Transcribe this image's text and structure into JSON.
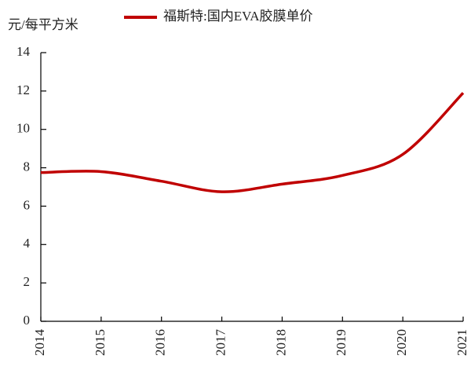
{
  "chart_data": {
    "type": "line",
    "ylabel": "元/每平方米",
    "categories": [
      "2014",
      "2015",
      "2016",
      "2017",
      "2018",
      "2019",
      "2020",
      "2021"
    ],
    "series": [
      {
        "name": "福斯特:国内EVA胶膜单价",
        "color": "#c00000",
        "values": [
          7.75,
          7.8,
          7.3,
          6.75,
          7.15,
          7.6,
          8.7,
          11.9
        ]
      }
    ],
    "ylim": [
      0,
      14
    ],
    "yticks": [
      0,
      2,
      4,
      6,
      8,
      10,
      12,
      14
    ],
    "grid": false,
    "legend": "top"
  }
}
